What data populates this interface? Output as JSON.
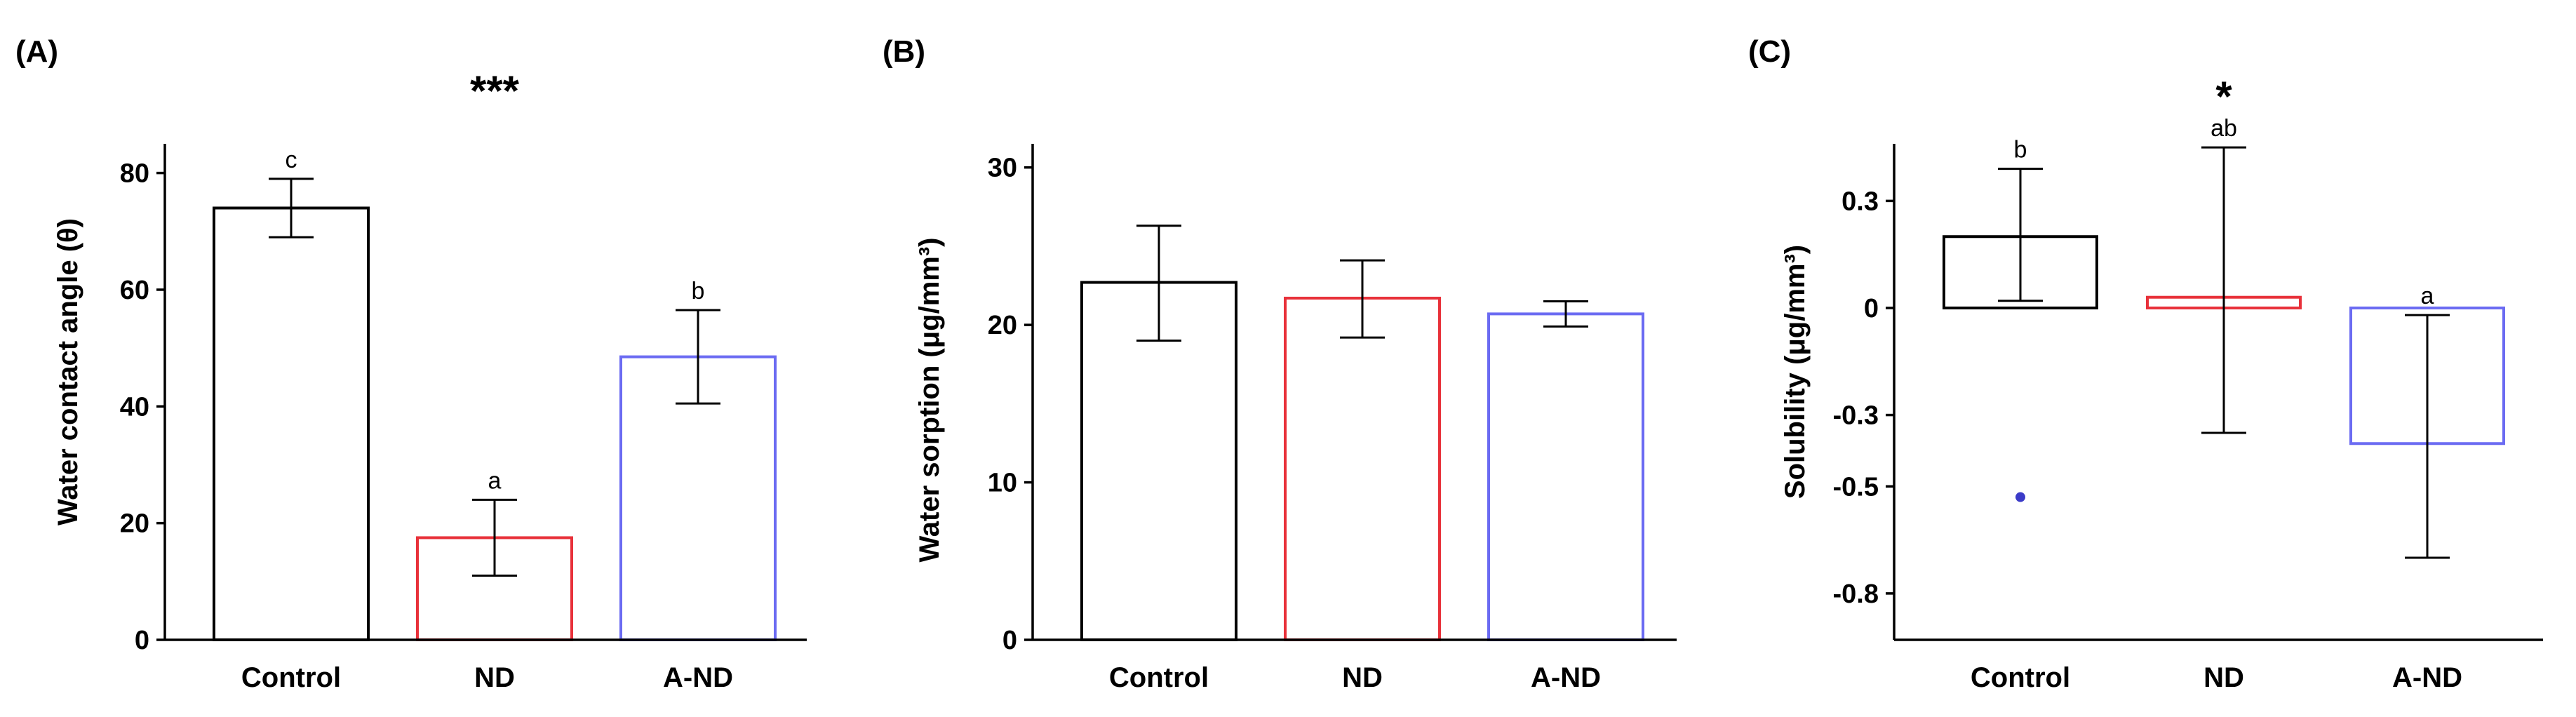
{
  "chart_data": [
    {
      "panel_label": "(A)",
      "type": "bar",
      "title": "***",
      "xlabel": "",
      "ylabel": "Water contact angle (θ)",
      "ylim": [
        0,
        85
      ],
      "yticks": [
        0,
        20,
        40,
        60,
        80
      ],
      "ytick_labels": [
        "0",
        "20",
        "40",
        "60",
        "80"
      ],
      "categories": [
        "Control",
        "ND",
        "A-ND"
      ],
      "values": [
        74,
        17.5,
        48.5
      ],
      "err_low": [
        69,
        11,
        40.5
      ],
      "err_high": [
        79,
        24,
        56.5
      ],
      "letters": [
        "c",
        "a",
        "b"
      ],
      "colors": [
        "#000000",
        "#e8313a",
        "#6b6bf2"
      ]
    },
    {
      "panel_label": "(B)",
      "type": "bar",
      "title": "",
      "xlabel": "",
      "ylabel": "Water sorption (μg/mm³)",
      "ylim": [
        0,
        31.5
      ],
      "yticks": [
        0,
        10,
        20,
        30
      ],
      "ytick_labels": [
        "0",
        "10",
        "20",
        "30"
      ],
      "categories": [
        "Control",
        "ND",
        "A-ND"
      ],
      "values": [
        22.7,
        21.7,
        20.7
      ],
      "err_low": [
        19,
        19.2,
        19.9
      ],
      "err_high": [
        26.3,
        24.1,
        21.5
      ],
      "letters": [
        "",
        "",
        ""
      ],
      "colors": [
        "#000000",
        "#e8313a",
        "#6b6bf2"
      ]
    },
    {
      "panel_label": "(C)",
      "type": "bar",
      "title": "*",
      "xlabel": "",
      "ylabel": "Solubility (μg/mm³)",
      "ylim": [
        -0.93,
        0.46
      ],
      "yticks": [
        -0.8,
        -0.5,
        -0.3,
        0,
        0.3
      ],
      "ytick_labels": [
        "-0.8",
        "-0.5",
        "-0.3",
        "0",
        "0.3"
      ],
      "categories": [
        "Control",
        "ND",
        "A-ND"
      ],
      "values": [
        0.2,
        0.03,
        -0.38
      ],
      "err_low": [
        0.02,
        -0.35,
        -0.7
      ],
      "err_high": [
        0.39,
        0.45,
        -0.02
      ],
      "letters": [
        "b",
        "ab",
        "a"
      ],
      "colors": [
        "#000000",
        "#e8313a",
        "#6b6bf2"
      ],
      "outlier": {
        "category": "Control",
        "value": -0.53,
        "color": "#3b3bc8"
      }
    }
  ]
}
